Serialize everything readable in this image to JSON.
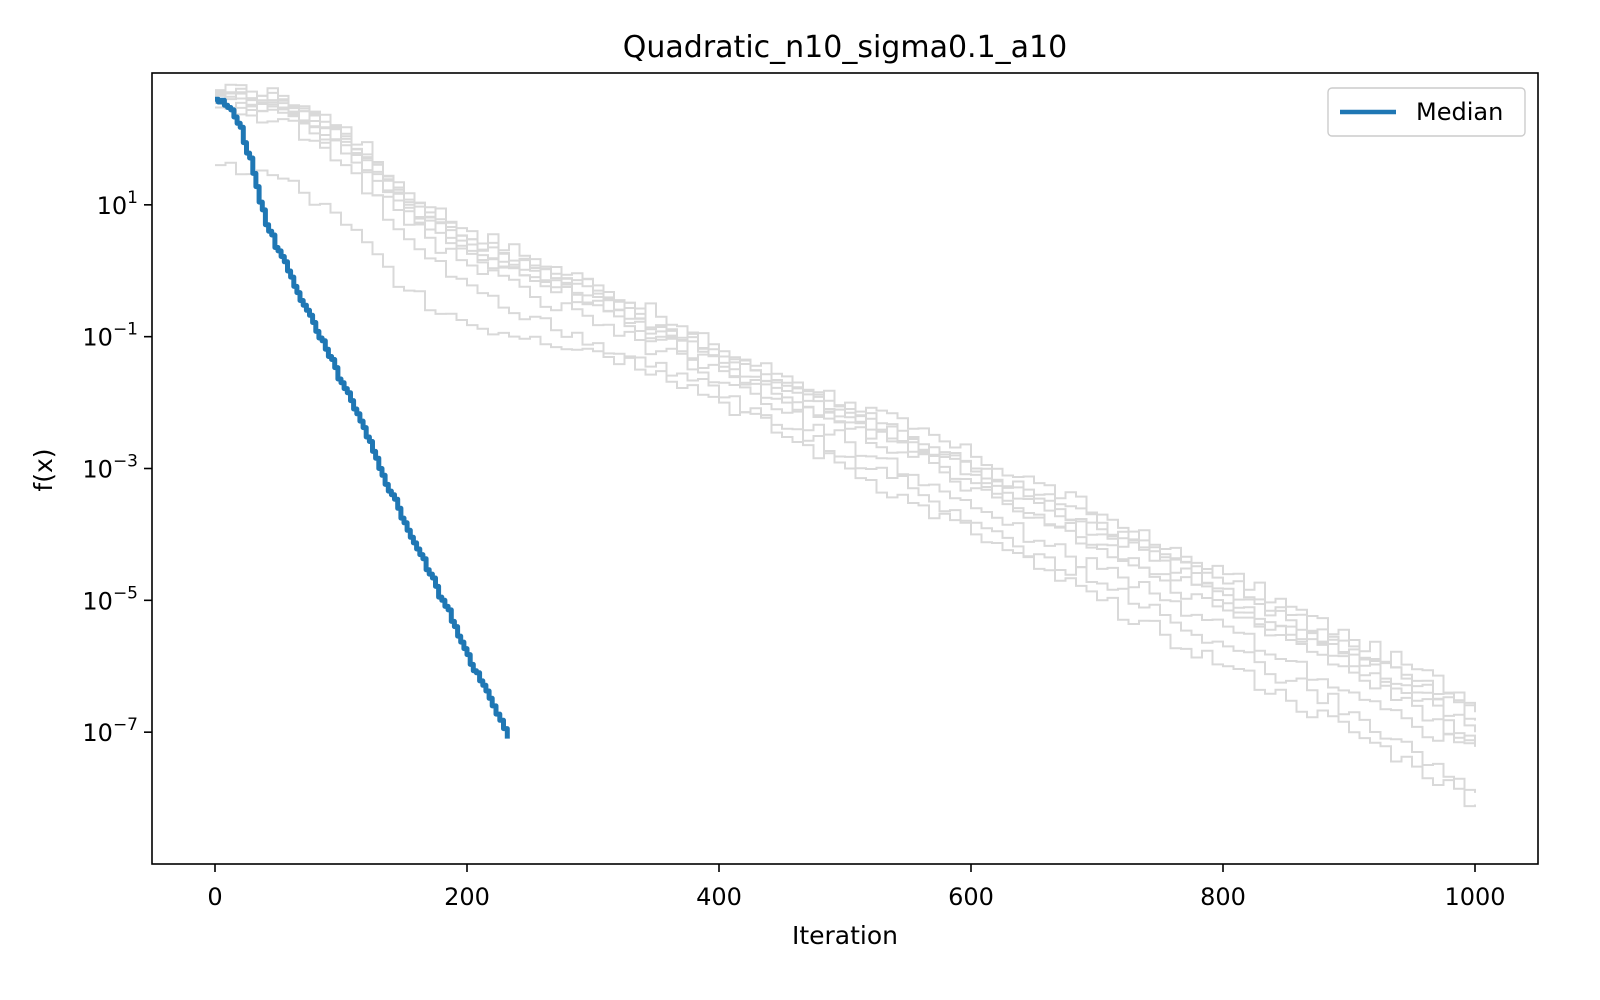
{
  "chart_data": {
    "type": "line",
    "title": "Quadratic_n10_sigma0.1_a10",
    "xlabel": "Iteration",
    "ylabel": "f(x)",
    "xlim": [
      -50,
      1050
    ],
    "ylim": [
      1e-09,
      1000
    ],
    "yscale": "log",
    "grid": false,
    "legend": {
      "position": "top-right",
      "entries": [
        "Median"
      ]
    },
    "x_ticks": [
      "0",
      "200",
      "400",
      "600",
      "800",
      "1000"
    ],
    "x_tick_values": [
      0,
      200,
      400,
      600,
      800,
      1000
    ],
    "y_ticks": [
      {
        "base": "10",
        "exp": "1",
        "value": 10
      },
      {
        "base": "10",
        "exp": "−1",
        "value": 0.1
      },
      {
        "base": "10",
        "exp": "−3",
        "value": 0.001
      },
      {
        "base": "10",
        "exp": "−5",
        "value": 1e-05
      },
      {
        "base": "10",
        "exp": "−7",
        "value": 1e-07
      }
    ],
    "colors": {
      "median": "#1f77b4",
      "runs": "#d9d9d9"
    },
    "series": [
      {
        "name": "Median",
        "x": [
          0,
          10,
          20,
          30,
          40,
          50,
          60,
          70,
          80,
          90,
          100,
          110,
          120,
          130,
          140,
          150,
          160,
          170,
          180,
          190,
          200,
          210,
          220,
          232
        ],
        "y": [
          400,
          300,
          150,
          30,
          5,
          2,
          0.8,
          0.3,
          0.12,
          0.05,
          0.02,
          0.008,
          0.003,
          0.001,
          0.0004,
          0.00015,
          6e-05,
          2.5e-05,
          1e-05,
          4e-06,
          1.5e-06,
          6e-07,
          2.5e-07,
          8e-08
        ]
      },
      {
        "x": [
          0,
          50,
          100,
          150,
          200,
          250,
          300,
          350,
          400,
          450,
          500,
          550,
          600,
          650,
          700,
          750,
          800,
          850,
          900,
          950,
          1000
        ],
        "y": [
          550,
          450,
          150,
          15,
          4,
          1.5,
          0.6,
          0.2,
          0.06,
          0.025,
          0.01,
          0.004,
          0.0015,
          0.0006,
          0.0002,
          6e-05,
          2.5e-05,
          8e-06,
          2.5e-06,
          9e-07,
          2.8e-07
        ]
      },
      {
        "x": [
          0,
          50,
          100,
          150,
          200,
          250,
          300,
          350,
          400,
          450,
          500,
          550,
          600,
          650,
          700,
          750,
          800,
          850,
          900,
          950,
          1000
        ],
        "y": [
          520,
          400,
          120,
          12,
          3,
          1.2,
          0.5,
          0.15,
          0.05,
          0.02,
          0.008,
          0.003,
          0.001,
          0.0004,
          0.00015,
          5e-05,
          1.8e-05,
          6e-06,
          2e-06,
          6e-07,
          2e-07
        ]
      },
      {
        "x": [
          0,
          50,
          100,
          150,
          200,
          250,
          300,
          350,
          400,
          450,
          500,
          550,
          600,
          650,
          700,
          750,
          800,
          850,
          900,
          950,
          1000
        ],
        "y": [
          500,
          350,
          100,
          10,
          2.5,
          1,
          0.4,
          0.12,
          0.04,
          0.015,
          0.006,
          0.0025,
          0.0008,
          0.0003,
          0.0001,
          4e-05,
          1.2e-05,
          4e-06,
          1.5e-06,
          4e-07,
          1e-07
        ]
      },
      {
        "x": [
          0,
          50,
          100,
          150,
          200,
          250,
          300,
          350,
          400,
          450,
          500,
          550,
          600,
          650,
          700,
          750,
          800,
          850,
          900,
          950,
          1000
        ],
        "y": [
          480,
          380,
          110,
          11,
          3,
          1.1,
          0.45,
          0.14,
          0.05,
          0.018,
          0.007,
          0.0028,
          0.0009,
          0.00035,
          0.00012,
          4.5e-05,
          1.5e-05,
          5e-06,
          1.8e-06,
          5e-07,
          1.5e-07
        ]
      },
      {
        "x": [
          0,
          50,
          100,
          150,
          200,
          250,
          300,
          350,
          400,
          450,
          500,
          550,
          600,
          650,
          700,
          750,
          800,
          850,
          900,
          950,
          1000
        ],
        "y": [
          450,
          300,
          90,
          9,
          2,
          0.8,
          0.35,
          0.1,
          0.035,
          0.012,
          0.005,
          0.0018,
          0.0006,
          0.0002,
          7e-05,
          2.5e-05,
          9e-06,
          3e-06,
          1e-06,
          3e-07,
          8e-08
        ]
      },
      {
        "x": [
          0,
          50,
          100,
          150,
          200,
          250,
          300,
          350,
          400,
          450,
          500,
          550,
          600,
          650,
          700,
          750,
          800,
          850,
          900,
          950,
          1000
        ],
        "y": [
          400,
          280,
          80,
          8,
          1.8,
          0.7,
          0.3,
          0.09,
          0.03,
          0.01,
          0.004,
          0.0015,
          0.0005,
          0.00018,
          6e-05,
          2e-05,
          7e-06,
          2.5e-06,
          8e-07,
          2.5e-07,
          6e-08
        ]
      },
      {
        "x": [
          0,
          50,
          100,
          150,
          200,
          250,
          300,
          350,
          400,
          450,
          500,
          550,
          600,
          650,
          700,
          750,
          800,
          850,
          900,
          950,
          1000
        ],
        "y": [
          350,
          250,
          60,
          5,
          1.2,
          0.4,
          0.15,
          0.06,
          0.02,
          0.007,
          0.0025,
          0.0008,
          0.00025,
          8e-05,
          3e-05,
          1e-05,
          4e-06,
          1.2e-06,
          4e-07,
          1.2e-07,
          6e-08
        ]
      },
      {
        "x": [
          0,
          50,
          100,
          150,
          200,
          250,
          300,
          350,
          400,
          450,
          500,
          550,
          600,
          650,
          700,
          750,
          800,
          850,
          900,
          950,
          1000
        ],
        "y": [
          300,
          200,
          40,
          3,
          0.6,
          0.2,
          0.08,
          0.04,
          0.012,
          0.004,
          0.0015,
          0.0005,
          0.00015,
          5e-05,
          1.8e-05,
          6e-06,
          2e-06,
          6e-07,
          2e-07,
          5e-08,
          1.2e-08
        ]
      },
      {
        "x": [
          0,
          50,
          100,
          150,
          200,
          250,
          300,
          350,
          400,
          450,
          500,
          550,
          600,
          650,
          700,
          750,
          800,
          850,
          900,
          950,
          1000
        ],
        "y": [
          40,
          25,
          5,
          0.5,
          0.15,
          0.1,
          0.06,
          0.03,
          0.01,
          0.003,
          0.001,
          0.0003,
          0.0001,
          3e-05,
          1e-05,
          3e-06,
          1e-06,
          3e-07,
          1e-07,
          3e-08,
          8e-09
        ]
      }
    ]
  }
}
